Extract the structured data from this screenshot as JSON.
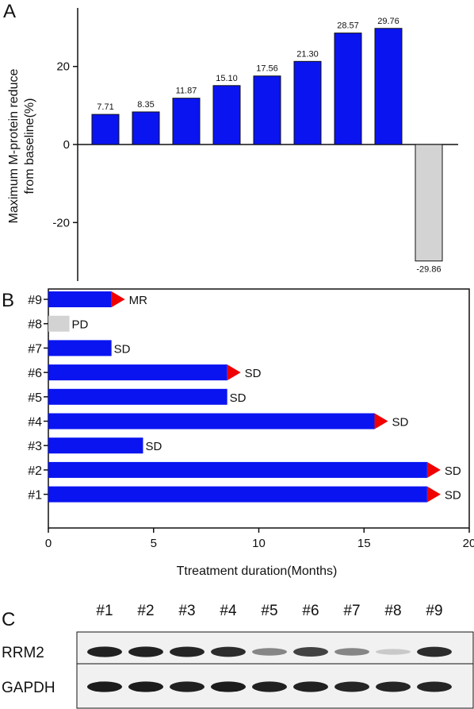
{
  "panels": {
    "a_letter": "A",
    "b_letter": "B",
    "c_letter": "C"
  },
  "colors": {
    "blue": "#0a14f0",
    "gray": "#d3d3d3",
    "red_arrow": "#f00000",
    "axis": "#111111"
  },
  "chart_data": [
    {
      "type": "bar",
      "panel": "A",
      "ylabel": "Maximum M-protein reduce from baseline(%)",
      "ylabel_lines": [
        "Maximum M-protein reduce",
        "from baseline(%)"
      ],
      "xlabel": "",
      "ylim": [
        -35,
        35
      ],
      "yticks": [
        -20,
        0,
        20
      ],
      "ytick_labels": [
        "-20",
        "0",
        "20"
      ],
      "values": [
        7.71,
        8.35,
        11.87,
        15.1,
        17.56,
        21.3,
        28.57,
        29.76,
        -29.86
      ],
      "value_labels": [
        "7.71",
        "8.35",
        "11.87",
        "15.10",
        "17.56",
        "21.30",
        "28.57",
        "29.76",
        "-29.86"
      ],
      "bar_colors": [
        "#0a14f0",
        "#0a14f0",
        "#0a14f0",
        "#0a14f0",
        "#0a14f0",
        "#0a14f0",
        "#0a14f0",
        "#0a14f0",
        "#d3d3d3"
      ],
      "grid": false
    },
    {
      "type": "bar",
      "orientation": "horizontal",
      "panel": "B",
      "xlabel": "Ttreatment duration(Months)",
      "ylabel": "",
      "xlim": [
        0,
        20
      ],
      "xticks": [
        0,
        5,
        10,
        15,
        20
      ],
      "xtick_labels": [
        "0",
        "5",
        "10",
        "15",
        "20"
      ],
      "categories": [
        "#9",
        "#8",
        "#7",
        "#6",
        "#5",
        "#4",
        "#3",
        "#2",
        "#1"
      ],
      "values": [
        3.0,
        1.0,
        3.0,
        8.5,
        8.5,
        15.5,
        4.5,
        18.0,
        18.0
      ],
      "status": [
        "MR",
        "PD",
        "SD",
        "SD",
        "SD",
        "SD",
        "SD",
        "SD",
        "SD"
      ],
      "ongoing": [
        true,
        false,
        false,
        true,
        false,
        true,
        false,
        true,
        true
      ],
      "bar_colors": [
        "#0a14f0",
        "#d3d3d3",
        "#0a14f0",
        "#0a14f0",
        "#0a14f0",
        "#0a14f0",
        "#0a14f0",
        "#0a14f0",
        "#0a14f0"
      ],
      "grid": false
    }
  ],
  "western_blot": {
    "lanes": [
      "#1",
      "#2",
      "#3",
      "#4",
      "#5",
      "#6",
      "#7",
      "#8",
      "#9"
    ],
    "rows": [
      {
        "label": "RRM2",
        "intensity": [
          0.9,
          0.9,
          0.88,
          0.85,
          0.45,
          0.75,
          0.45,
          0.15,
          0.85
        ]
      },
      {
        "label": "GAPDH",
        "intensity": [
          0.92,
          0.92,
          0.9,
          0.92,
          0.9,
          0.9,
          0.88,
          0.88,
          0.88
        ]
      }
    ]
  }
}
